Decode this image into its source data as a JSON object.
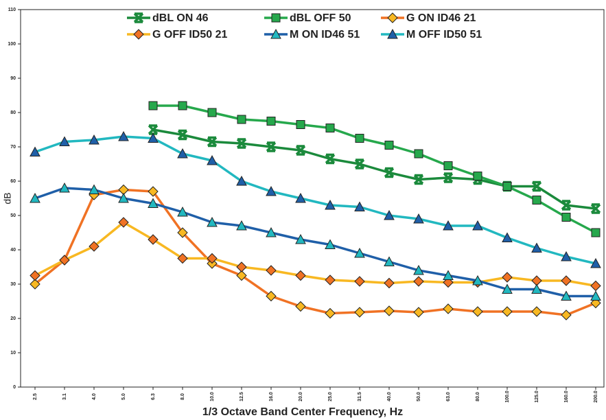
{
  "chart_data": {
    "type": "line",
    "x_label": "1/3 Octave Band Center Frequency, Hz",
    "y_label": "dB",
    "categories": [
      "2.5",
      "3.1",
      "4.0",
      "5.0",
      "6.3",
      "8.0",
      "10.0",
      "12.5",
      "16.0",
      "20.0",
      "25.0",
      "31.5",
      "40.0",
      "50.0",
      "63.0",
      "80.0",
      "100.0",
      "125.0",
      "160.0",
      "200.0"
    ],
    "ylim": [
      0,
      110
    ],
    "yticks": [
      0,
      10,
      20,
      30,
      40,
      50,
      60,
      70,
      80,
      90,
      100,
      110
    ],
    "series": [
      {
        "name": "dBL ON 46",
        "color": "#1b8a3c",
        "marker": "x",
        "marker_color": "#1b8a3c",
        "values": [
          null,
          null,
          null,
          null,
          75,
          73.5,
          71.5,
          71,
          70,
          69,
          66.5,
          65,
          62.5,
          60.5,
          61,
          60.5,
          58.5,
          58.5,
          53,
          52
        ]
      },
      {
        "name": "dBL OFF 50",
        "color": "#26a84c",
        "marker": "square",
        "marker_color": "#26a84c",
        "values": [
          null,
          null,
          null,
          null,
          82,
          82,
          80,
          78,
          77.5,
          76.5,
          75.5,
          72.5,
          70.5,
          68,
          64.5,
          61.5,
          58.5,
          54.5,
          49.5,
          45
        ]
      },
      {
        "name": "G ON ID46 21",
        "color": "#f07224",
        "marker": "diamond",
        "marker_color": "#f8b822",
        "values": [
          30,
          37,
          56,
          57.5,
          57,
          45,
          36,
          32.5,
          26.5,
          23.5,
          21.5,
          21.8,
          22.2,
          21.8,
          22.8,
          22,
          22,
          22,
          21,
          24.5
        ]
      },
      {
        "name": "G OFF ID50 21",
        "color": "#f8b822",
        "marker": "diamond",
        "marker_color": "#f07224",
        "values": [
          32.5,
          37,
          41,
          48,
          43,
          37.5,
          37.5,
          35,
          34,
          32.5,
          31.2,
          30.8,
          30.3,
          30.8,
          30.5,
          30.5,
          32,
          31,
          31,
          29.5
        ]
      },
      {
        "name": "M ON ID46 51",
        "color": "#1f5fa8",
        "marker": "triangle",
        "marker_color": "#22b8c0",
        "values": [
          55,
          58,
          57.5,
          55,
          53.5,
          51,
          48,
          47,
          45,
          43,
          41.5,
          39,
          36.5,
          34,
          32.5,
          31,
          28.5,
          28.5,
          26.5,
          26.5
        ]
      },
      {
        "name": "M OFF ID50 51",
        "color": "#22b8c0",
        "marker": "triangle",
        "marker_color": "#1f5fa8",
        "values": [
          68.5,
          71.5,
          72,
          73,
          72.5,
          68,
          66,
          60,
          57,
          55,
          53,
          52.5,
          50,
          49,
          47,
          47,
          43.5,
          40.5,
          38,
          36
        ]
      }
    ]
  }
}
